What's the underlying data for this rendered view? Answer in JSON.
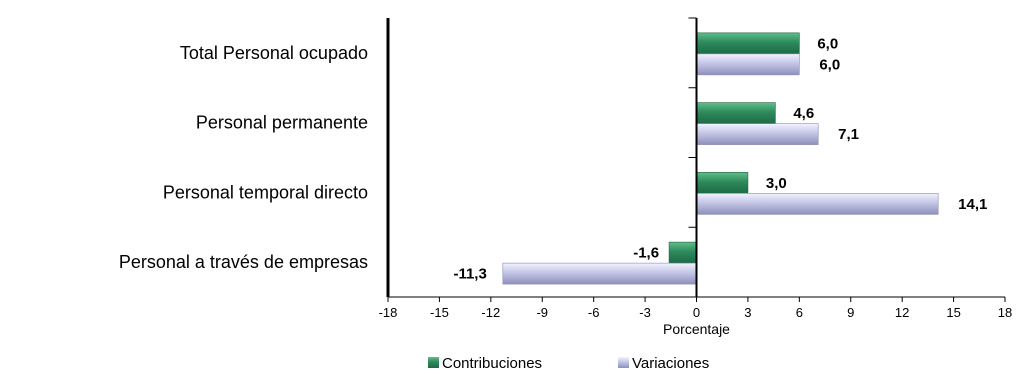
{
  "chart_data": {
    "type": "bar",
    "orientation": "horizontal",
    "categories": [
      "Total Personal ocupado",
      "Personal permanente",
      "Personal temporal directo",
      "Personal a través de empresas"
    ],
    "series": [
      {
        "name": "Contribuciones",
        "values": [
          6.0,
          4.6,
          3.0,
          -1.6
        ],
        "labels": [
          "6,0",
          "4,6",
          "3,0",
          "-1,6"
        ],
        "color": "#2e8a5c"
      },
      {
        "name": "Variaciones",
        "values": [
          6.0,
          7.1,
          14.1,
          -11.3
        ],
        "labels": [
          "6,0",
          "7,1",
          "14,1",
          "-11,3"
        ],
        "color": "#aeb0d6"
      }
    ],
    "xlabel": "Porcentaje",
    "xlim": [
      -18,
      18
    ],
    "xticks": [
      -18,
      -15,
      -12,
      -9,
      -6,
      -3,
      0,
      3,
      6,
      9,
      12,
      15,
      18
    ],
    "grid": false,
    "legend_position": "bottom"
  }
}
